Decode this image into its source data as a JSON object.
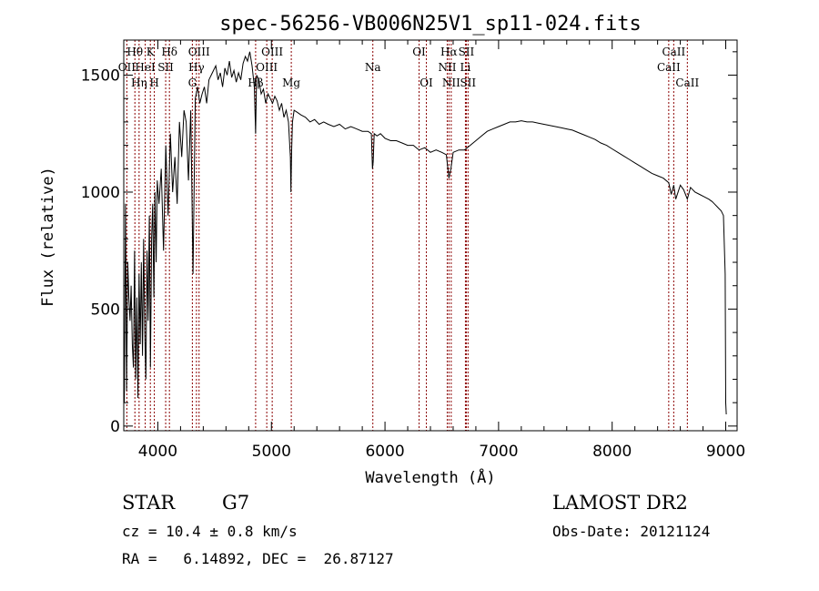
{
  "chart_data": {
    "type": "line",
    "title": "spec-56256-VB006N25V1_sp11-024.fits",
    "xlabel": "Wavelength (Å)",
    "ylabel": "Flux (relative)",
    "xlim": [
      3700,
      9100
    ],
    "ylim": [
      -20,
      1650
    ],
    "xticks": [
      4000,
      5000,
      6000,
      7000,
      8000,
      9000
    ],
    "yticks": [
      0,
      500,
      1000,
      1500
    ],
    "grid": false,
    "line_color": "#000000",
    "marker_color": "#8b0000",
    "spectrum": {
      "x": [
        3705,
        3715,
        3725,
        3735,
        3745,
        3755,
        3765,
        3775,
        3785,
        3795,
        3805,
        3815,
        3825,
        3835,
        3845,
        3855,
        3865,
        3875,
        3885,
        3895,
        3905,
        3915,
        3925,
        3935,
        3945,
        3955,
        3965,
        3975,
        3985,
        3995,
        4010,
        4030,
        4050,
        4070,
        4090,
        4110,
        4130,
        4150,
        4170,
        4190,
        4210,
        4230,
        4250,
        4270,
        4290,
        4300,
        4310,
        4330,
        4350,
        4370,
        4390,
        4410,
        4430,
        4450,
        4470,
        4490,
        4510,
        4530,
        4550,
        4570,
        4590,
        4610,
        4630,
        4650,
        4670,
        4690,
        4710,
        4730,
        4750,
        4770,
        4790,
        4810,
        4830,
        4850,
        4861,
        4870,
        4890,
        4910,
        4930,
        4950,
        4970,
        4990,
        5010,
        5030,
        5050,
        5070,
        5090,
        5110,
        5130,
        5150,
        5167,
        5172,
        5178,
        5185,
        5200,
        5230,
        5260,
        5300,
        5340,
        5380,
        5420,
        5460,
        5500,
        5550,
        5600,
        5650,
        5700,
        5750,
        5800,
        5850,
        5880,
        5890,
        5896,
        5905,
        5930,
        5960,
        6000,
        6050,
        6100,
        6150,
        6200,
        6250,
        6300,
        6350,
        6400,
        6450,
        6500,
        6540,
        6563,
        6580,
        6600,
        6650,
        6700,
        6750,
        6800,
        6850,
        6900,
        6950,
        7000,
        7050,
        7100,
        7150,
        7200,
        7250,
        7300,
        7350,
        7400,
        7450,
        7500,
        7550,
        7600,
        7650,
        7700,
        7750,
        7800,
        7850,
        7900,
        7950,
        8000,
        8050,
        8100,
        8150,
        8200,
        8250,
        8300,
        8350,
        8400,
        8450,
        8498,
        8520,
        8542,
        8560,
        8600,
        8630,
        8662,
        8690,
        8730,
        8770,
        8810,
        8850,
        8880,
        8900,
        8920,
        8940,
        8960,
        8980,
        8995,
        9000,
        9005
      ],
      "y": [
        100,
        950,
        150,
        700,
        550,
        450,
        600,
        350,
        250,
        750,
        200,
        550,
        120,
        650,
        350,
        700,
        300,
        800,
        400,
        200,
        750,
        450,
        900,
        250,
        800,
        950,
        550,
        1000,
        700,
        1050,
        950,
        1100,
        750,
        1200,
        900,
        1250,
        1000,
        1150,
        950,
        1300,
        1150,
        1350,
        1300,
        1050,
        1350,
        1000,
        650,
        1400,
        1450,
        1380,
        1420,
        1450,
        1380,
        1480,
        1500,
        1520,
        1540,
        1480,
        1510,
        1450,
        1530,
        1500,
        1560,
        1490,
        1520,
        1470,
        1510,
        1480,
        1550,
        1580,
        1560,
        1600,
        1540,
        1450,
        1250,
        1500,
        1480,
        1420,
        1440,
        1380,
        1420,
        1400,
        1380,
        1410,
        1390,
        1350,
        1380,
        1320,
        1350,
        1300,
        1150,
        1000,
        1180,
        1300,
        1350,
        1340,
        1330,
        1320,
        1300,
        1310,
        1290,
        1300,
        1290,
        1280,
        1290,
        1270,
        1280,
        1270,
        1260,
        1260,
        1250,
        1100,
        1130,
        1250,
        1240,
        1250,
        1230,
        1220,
        1220,
        1210,
        1200,
        1200,
        1180,
        1190,
        1170,
        1180,
        1170,
        1160,
        1060,
        1100,
        1170,
        1180,
        1180,
        1200,
        1220,
        1240,
        1260,
        1270,
        1280,
        1290,
        1300,
        1300,
        1305,
        1300,
        1300,
        1295,
        1290,
        1285,
        1280,
        1275,
        1270,
        1265,
        1255,
        1245,
        1235,
        1225,
        1210,
        1200,
        1185,
        1170,
        1155,
        1140,
        1125,
        1110,
        1095,
        1080,
        1070,
        1060,
        1040,
        990,
        1030,
        970,
        1030,
        1010,
        970,
        1020,
        1000,
        990,
        980,
        970,
        960,
        950,
        940,
        930,
        920,
        900,
        650,
        100,
        50
      ]
    },
    "lines": [
      {
        "label": "Hθ",
        "x": 3798,
        "row": 1
      },
      {
        "label": "OII",
        "x": 3727,
        "row": 2
      },
      {
        "label": "Hη",
        "x": 3835,
        "row": 3
      },
      {
        "label": "K",
        "x": 3934,
        "row": 1
      },
      {
        "label": "HeI",
        "x": 3889,
        "row": 2
      },
      {
        "label": "H",
        "x": 3969,
        "row": 3
      },
      {
        "label": "SII",
        "x": 4069,
        "row": 2
      },
      {
        "label": "Hδ",
        "x": 4102,
        "row": 1
      },
      {
        "label": "OIII",
        "x": 4363,
        "row": 1
      },
      {
        "label": "Hγ",
        "x": 4340,
        "row": 2
      },
      {
        "label": "G",
        "x": 4304,
        "row": 3
      },
      {
        "label": "OIII",
        "x": 5007,
        "row": 1
      },
      {
        "label": "OIII",
        "x": 4959,
        "row": 2
      },
      {
        "label": "Hβ",
        "x": 4861,
        "row": 3
      },
      {
        "label": "Mg",
        "x": 5175,
        "row": 3
      },
      {
        "label": "Na",
        "x": 5893,
        "row": 2
      },
      {
        "label": "OI",
        "x": 6300,
        "row": 1
      },
      {
        "label": "OI",
        "x": 6364,
        "row": 3
      },
      {
        "label": "Hα",
        "x": 6563,
        "row": 1
      },
      {
        "label": "SII",
        "x": 6716,
        "row": 1
      },
      {
        "label": "NII",
        "x": 6548,
        "row": 2
      },
      {
        "label": "Li",
        "x": 6708,
        "row": 2
      },
      {
        "label": "NII",
        "x": 6583,
        "row": 3
      },
      {
        "label": "SII",
        "x": 6731,
        "row": 3
      },
      {
        "label": "CaII",
        "x": 8542,
        "row": 1
      },
      {
        "label": "CaII",
        "x": 8498,
        "row": 2
      },
      {
        "label": "CaII",
        "x": 8662,
        "row": 3
      }
    ]
  },
  "info": {
    "object_class": "STAR",
    "subclass": "G7",
    "survey": "LAMOST DR2",
    "redshift": "cz = 10.4 ± 0.8 km/s",
    "obs_date": "Obs-Date: 20121124",
    "coords": "RA =   6.14892, DEC =  26.87127"
  }
}
